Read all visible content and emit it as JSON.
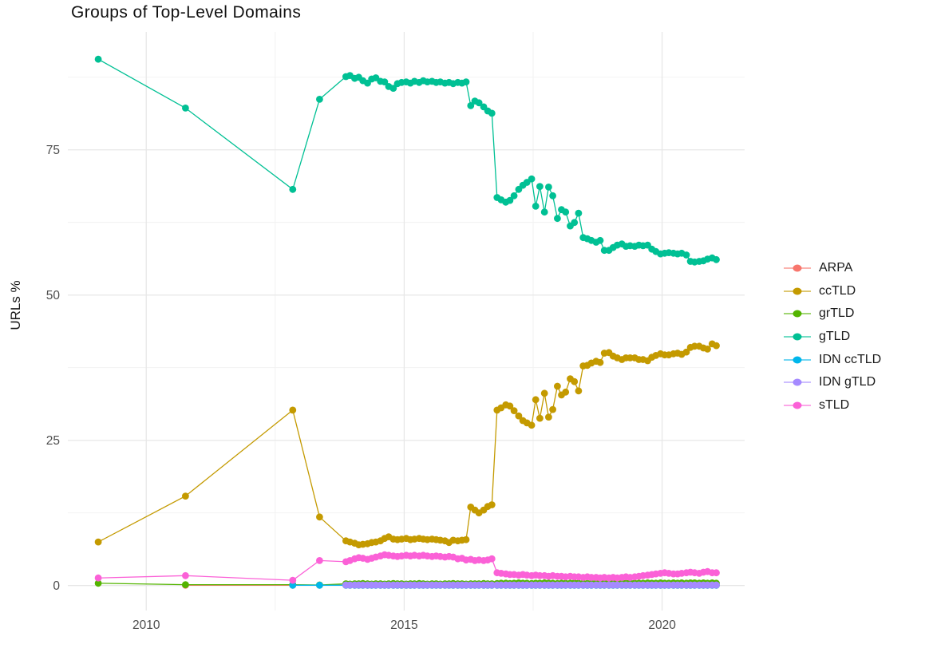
{
  "title": "Groups of Top-Level Domains",
  "y_axis": {
    "label": "URLs %",
    "tick_labels": [
      "0",
      "25",
      "50",
      "75"
    ],
    "tick_values": [
      0,
      25,
      50,
      75
    ]
  },
  "x_axis": {
    "tick_labels": [
      "2010",
      "2015",
      "2020"
    ],
    "tick_values": [
      2010,
      2015,
      2020
    ]
  },
  "colors": {
    "background": "#ffffff",
    "grid_major": "#e7e7e7",
    "grid_minor": "#f1f1f1",
    "tick_text": "#4d4d4d",
    "axis_title_text": "#1a1a1a",
    "title_text": "#111111"
  },
  "chart_data": {
    "type": "line",
    "title": "Groups of Top-Level Domains",
    "xlabel": "",
    "ylabel": "URLs %",
    "legend_position": "right",
    "grid": true,
    "xlim": [
      2008.48,
      2021.6
    ],
    "ylim": [
      -4.3,
      95.3
    ],
    "x_major": [
      2010,
      2015,
      2020
    ],
    "x_minor": [
      2012.5,
      2017.5
    ],
    "y_major": [
      0,
      25,
      50,
      75
    ],
    "y_minor": [
      12.5,
      37.5,
      62.5,
      87.5
    ],
    "x": [
      2009.07,
      2010.76,
      2012.84,
      2013.36,
      2013.87,
      2013.95,
      2014.04,
      2014.12,
      2014.2,
      2014.29,
      2014.37,
      2014.45,
      2014.54,
      2014.62,
      2014.7,
      2014.79,
      2014.87,
      2014.95,
      2015.04,
      2015.12,
      2015.2,
      2015.29,
      2015.37,
      2015.45,
      2015.54,
      2015.62,
      2015.7,
      2015.79,
      2015.87,
      2015.95,
      2016.04,
      2016.12,
      2016.2,
      2016.29,
      2016.37,
      2016.45,
      2016.54,
      2016.62,
      2016.7,
      2016.8,
      2016.88,
      2016.97,
      2017.05,
      2017.13,
      2017.22,
      2017.3,
      2017.38,
      2017.47,
      2017.55,
      2017.63,
      2017.72,
      2017.8,
      2017.88,
      2017.97,
      2018.05,
      2018.13,
      2018.22,
      2018.3,
      2018.38,
      2018.47,
      2018.55,
      2018.63,
      2018.72,
      2018.8,
      2018.88,
      2018.97,
      2019.05,
      2019.13,
      2019.22,
      2019.3,
      2019.38,
      2019.47,
      2019.55,
      2019.63,
      2019.72,
      2019.8,
      2019.88,
      2019.97,
      2020.05,
      2020.13,
      2020.22,
      2020.3,
      2020.38,
      2020.47,
      2020.55,
      2020.63,
      2020.72,
      2020.8,
      2020.88,
      2020.97,
      2021.05
    ],
    "series": [
      {
        "name": "ARPA",
        "color": "#F8766D",
        "y_const": 0.05,
        "from_index": 1
      },
      {
        "name": "ccTLD",
        "color": "#C49A00",
        "y": [
          7.5,
          15.4,
          30.2,
          11.8,
          7.7,
          7.5,
          7.3,
          7.0,
          7.1,
          7.2,
          7.4,
          7.5,
          7.7,
          8.1,
          8.4,
          8.0,
          7.9,
          8.0,
          8.1,
          7.9,
          8.0,
          8.1,
          8.0,
          7.9,
          8.0,
          7.9,
          7.8,
          7.7,
          7.4,
          7.8,
          7.7,
          7.8,
          7.9,
          13.5,
          13.0,
          12.5,
          13.0,
          13.6,
          13.9,
          30.2,
          30.6,
          31.1,
          30.9,
          30.1,
          29.2,
          28.4,
          28.0,
          27.6,
          32.0,
          28.8,
          33.1,
          29.0,
          30.3,
          34.3,
          32.8,
          33.3,
          35.6,
          35.1,
          33.5,
          37.8,
          37.9,
          38.3,
          38.6,
          38.4,
          40.0,
          40.1,
          39.5,
          39.2,
          38.9,
          39.2,
          39.2,
          39.2,
          38.9,
          38.9,
          38.7,
          39.3,
          39.6,
          39.9,
          39.7,
          39.7,
          39.9,
          40.0,
          39.8,
          40.2,
          41.0,
          41.2,
          41.2,
          40.9,
          40.7,
          41.6,
          41.3
        ]
      },
      {
        "name": "grTLD",
        "color": "#53B400",
        "y": [
          0.4,
          0.15,
          0.15,
          0.1,
          0.3,
          0.25,
          0.3,
          0.3,
          0.35,
          0.3,
          0.25,
          0.3,
          0.3,
          0.25,
          0.3,
          0.35,
          0.3,
          0.3,
          0.25,
          0.3,
          0.3,
          0.35,
          0.3,
          0.25,
          0.3,
          0.3,
          0.25,
          0.3,
          0.3,
          0.35,
          0.3,
          0.3,
          0.25,
          0.3,
          0.3,
          0.3,
          0.35,
          0.3,
          0.3,
          0.35,
          0.4,
          0.4,
          0.35,
          0.4,
          0.45,
          0.4,
          0.4,
          0.35,
          0.4,
          0.4,
          0.45,
          0.4,
          0.4,
          0.35,
          0.4,
          0.4,
          0.4,
          0.45,
          0.4,
          0.4,
          0.35,
          0.4,
          0.4,
          0.45,
          0.4,
          0.4,
          0.4,
          0.35,
          0.4,
          0.4,
          0.45,
          0.4,
          0.4,
          0.4,
          0.45,
          0.4,
          0.4,
          0.45,
          0.4,
          0.4,
          0.45,
          0.4,
          0.45,
          0.4,
          0.45,
          0.45,
          0.4,
          0.45,
          0.4,
          0.45,
          0.4
        ]
      },
      {
        "name": "gTLD",
        "color": "#00C094",
        "y": [
          90.6,
          82.2,
          68.2,
          83.7,
          87.6,
          87.8,
          87.3,
          87.5,
          86.9,
          86.5,
          87.2,
          87.4,
          86.8,
          86.7,
          85.9,
          85.6,
          86.4,
          86.6,
          86.7,
          86.5,
          86.8,
          86.6,
          86.9,
          86.7,
          86.8,
          86.6,
          86.7,
          86.5,
          86.6,
          86.4,
          86.6,
          86.5,
          86.7,
          82.6,
          83.4,
          83.1,
          82.4,
          81.7,
          81.3,
          66.8,
          66.4,
          66.0,
          66.3,
          67.1,
          68.2,
          68.9,
          69.4,
          70.0,
          65.3,
          68.7,
          64.3,
          68.6,
          67.1,
          63.2,
          64.7,
          64.3,
          61.9,
          62.5,
          64.1,
          59.9,
          59.7,
          59.4,
          59.1,
          59.4,
          57.7,
          57.7,
          58.2,
          58.6,
          58.8,
          58.4,
          58.5,
          58.4,
          58.6,
          58.5,
          58.6,
          57.9,
          57.5,
          57.1,
          57.2,
          57.3,
          57.2,
          57.1,
          57.2,
          56.9,
          55.8,
          55.7,
          55.8,
          55.9,
          56.2,
          56.4,
          56.1
        ]
      },
      {
        "name": "IDN ccTLD",
        "color": "#00B6EB",
        "y_const": 0.05,
        "from_index": 2
      },
      {
        "name": "IDN gTLD",
        "color": "#A58AFF",
        "y_const": 0.1,
        "from_index": 4
      },
      {
        "name": "sTLD",
        "color": "#FB61D7",
        "y": [
          1.3,
          1.7,
          0.9,
          4.3,
          4.1,
          4.3,
          4.6,
          4.8,
          4.7,
          4.5,
          4.7,
          4.9,
          5.1,
          5.3,
          5.2,
          5.1,
          5.0,
          5.1,
          5.2,
          5.1,
          5.2,
          5.1,
          5.2,
          5.1,
          5.0,
          5.1,
          5.0,
          4.9,
          5.0,
          4.9,
          4.6,
          4.7,
          4.4,
          4.5,
          4.3,
          4.4,
          4.3,
          4.4,
          4.6,
          2.2,
          2.1,
          2.0,
          1.9,
          1.9,
          1.8,
          1.9,
          1.8,
          1.7,
          1.8,
          1.7,
          1.7,
          1.6,
          1.7,
          1.6,
          1.6,
          1.5,
          1.6,
          1.5,
          1.5,
          1.4,
          1.5,
          1.4,
          1.4,
          1.3,
          1.4,
          1.3,
          1.4,
          1.3,
          1.4,
          1.5,
          1.4,
          1.5,
          1.6,
          1.7,
          1.8,
          1.9,
          2.0,
          2.1,
          2.2,
          2.1,
          2.0,
          2.0,
          2.1,
          2.2,
          2.3,
          2.2,
          2.1,
          2.3,
          2.4,
          2.2,
          2.2
        ]
      }
    ]
  },
  "legend": {
    "items": [
      {
        "label": "ARPA"
      },
      {
        "label": "ccTLD"
      },
      {
        "label": "grTLD"
      },
      {
        "label": "gTLD"
      },
      {
        "label": "IDN ccTLD"
      },
      {
        "label": "IDN gTLD"
      },
      {
        "label": "sTLD"
      }
    ]
  }
}
